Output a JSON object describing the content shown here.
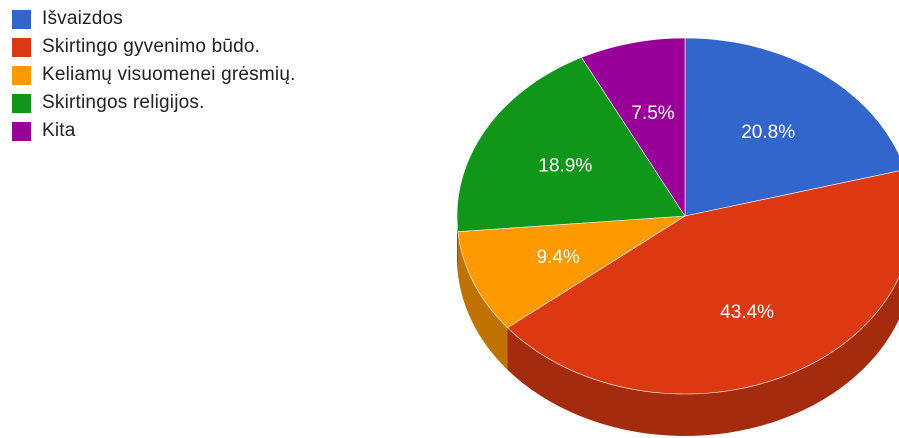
{
  "chart_data": {
    "type": "pie",
    "style": "3d",
    "legend_position": "top-left",
    "slices": [
      {
        "label": "Išvaizdos",
        "value": 20.8,
        "value_label": "20.8%",
        "color": "#3366cc",
        "side_color": "#264c99"
      },
      {
        "label": "Skirtingo gyvenimo būdo.",
        "value": 43.4,
        "value_label": "43.4%",
        "color": "#dc3912",
        "side_color": "#a52b0e"
      },
      {
        "label": "Keliamų visuomenei grėsmių.",
        "value": 9.4,
        "value_label": "9.4%",
        "color": "#ff9900",
        "side_color": "#bf7200"
      },
      {
        "label": "Skirtingos religijos.",
        "value": 18.9,
        "value_label": "18.9%",
        "color": "#109618",
        "side_color": "#0c7012"
      },
      {
        "label": "Kita",
        "value": 7.5,
        "value_label": "7.5%",
        "color": "#990099",
        "side_color": "#720072"
      }
    ]
  }
}
